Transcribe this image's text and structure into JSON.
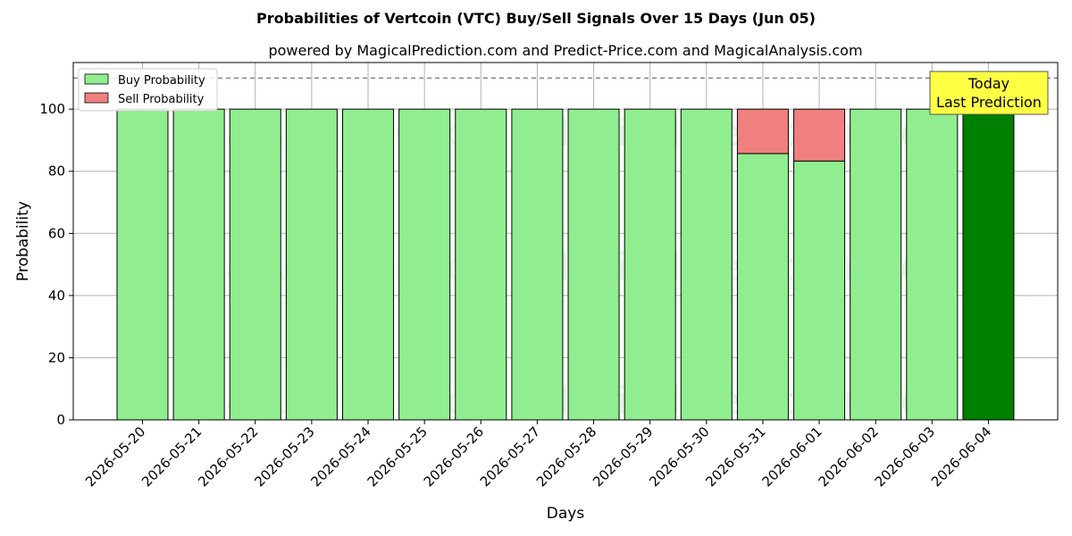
{
  "chart_data": {
    "type": "bar",
    "stacked": true,
    "title": "Probabilities of Vertcoin (VTC) Buy/Sell Signals Over 15 Days (Jun 05)",
    "subtitle": "powered by MagicalPrediction.com and Predict-Price.com and MagicalAnalysis.com",
    "xlabel": "Days",
    "ylabel": "Probability",
    "ylim": [
      0,
      115
    ],
    "yticks": [
      0,
      20,
      40,
      60,
      80,
      100
    ],
    "grid": true,
    "legend_position": "top-left",
    "reference_line": 110,
    "categories": [
      "2026-05-20",
      "2026-05-21",
      "2026-05-22",
      "2026-05-23",
      "2026-05-24",
      "2026-05-25",
      "2026-05-26",
      "2026-05-27",
      "2026-05-28",
      "2026-05-29",
      "2026-05-30",
      "2026-05-31",
      "2026-06-01",
      "2026-06-02",
      "2026-06-03",
      "2026-06-04"
    ],
    "series": [
      {
        "name": "Buy Probability",
        "color": "#90ee90",
        "values": [
          100,
          100,
          100,
          100,
          100,
          100,
          100,
          100,
          100,
          100,
          100,
          85.7,
          83.3,
          100,
          100,
          100
        ]
      },
      {
        "name": "Sell Probability",
        "color": "#f08080",
        "values": [
          0,
          0,
          0,
          0,
          0,
          0,
          0,
          0,
          0,
          0,
          0,
          14.3,
          16.7,
          0,
          0,
          0
        ]
      }
    ],
    "highlight": {
      "index": 15,
      "color": "#008000"
    },
    "annotation": {
      "lines": [
        "Today",
        "Last Prediction"
      ],
      "background": "#ffff44"
    },
    "watermarks": [
      "MagicalAnalysis.com",
      "MagicalPrediction.com"
    ]
  }
}
